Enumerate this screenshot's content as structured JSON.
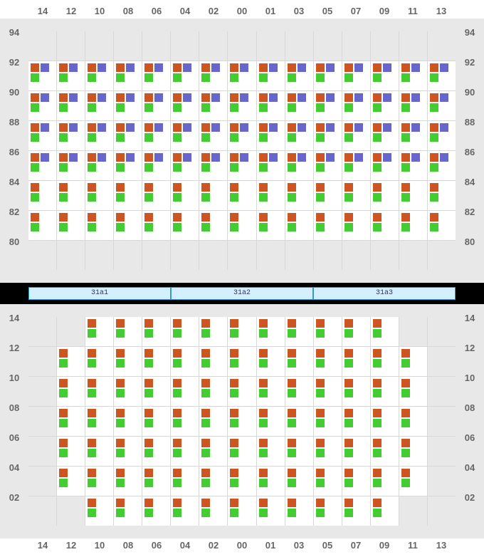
{
  "colors": {
    "orange": "#cc5522",
    "green": "#44cc33",
    "purple": "#6666cc",
    "active_bg": "#ffffff",
    "inactive_bg": "#e8e8e8",
    "grid_line": "#d8d8d8",
    "switch_bg": "#d4f0ff",
    "switch_border": "#3399cc"
  },
  "columns": [
    "14",
    "12",
    "10",
    "08",
    "06",
    "04",
    "02",
    "00",
    "01",
    "03",
    "05",
    "07",
    "09",
    "11",
    "13"
  ],
  "top": {
    "rows": [
      "94",
      "92",
      "90",
      "88",
      "86",
      "84",
      "82",
      "80"
    ],
    "pattern": {
      "94": {
        "active": false
      },
      "92": {
        "active": true,
        "cols": "all",
        "markers": [
          "o",
          "p",
          "g"
        ]
      },
      "90": {
        "active": true,
        "cols": "all",
        "markers": [
          "o",
          "p",
          "g"
        ]
      },
      "88": {
        "active": true,
        "cols": "all",
        "markers": [
          "o",
          "p",
          "g"
        ]
      },
      "86": {
        "active": true,
        "cols": "all",
        "markers": [
          "o",
          "p",
          "g"
        ]
      },
      "84": {
        "active": true,
        "cols": "all",
        "markers": [
          "o",
          "g"
        ]
      },
      "82": {
        "active": true,
        "cols": "all",
        "markers": [
          "o",
          "g"
        ]
      },
      "80": {
        "active": false
      }
    }
  },
  "switches": [
    "31a1",
    "31a2",
    "31a3"
  ],
  "bottom": {
    "rows": [
      "14",
      "12",
      "10",
      "08",
      "06",
      "04",
      "02"
    ],
    "pattern": {
      "14": {
        "cols": [
          2,
          3,
          4,
          5,
          6,
          7,
          8,
          9,
          10,
          11,
          12
        ],
        "markers": [
          "o",
          "g"
        ]
      },
      "12": {
        "cols": [
          1,
          2,
          3,
          4,
          5,
          6,
          7,
          8,
          9,
          10,
          11,
          12,
          13
        ],
        "markers": [
          "o",
          "g"
        ]
      },
      "10": {
        "cols": [
          1,
          2,
          3,
          4,
          5,
          6,
          7,
          8,
          9,
          10,
          11,
          12,
          13
        ],
        "markers": [
          "o",
          "g"
        ]
      },
      "08": {
        "cols": [
          1,
          2,
          3,
          4,
          5,
          6,
          7,
          8,
          9,
          10,
          11,
          12,
          13
        ],
        "markers": [
          "o",
          "g"
        ]
      },
      "06": {
        "cols": [
          1,
          2,
          3,
          4,
          5,
          6,
          7,
          8,
          9,
          10,
          11,
          12,
          13
        ],
        "markers": [
          "o",
          "g"
        ]
      },
      "04": {
        "cols": [
          1,
          2,
          3,
          4,
          5,
          6,
          7,
          8,
          9,
          10,
          11,
          12,
          13
        ],
        "markers": [
          "o",
          "g"
        ]
      },
      "02": {
        "cols": [
          2,
          3,
          4,
          5,
          6,
          7,
          8,
          9,
          10,
          11,
          12
        ],
        "markers": [
          "o",
          "g"
        ]
      }
    }
  }
}
